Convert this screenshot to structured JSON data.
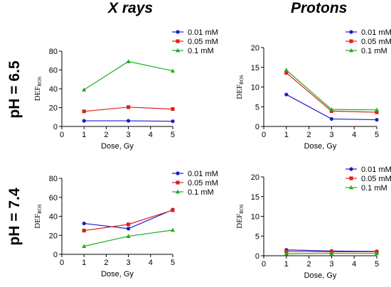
{
  "headers": {
    "col_left": "X rays",
    "col_right": "Protons",
    "row_top": "pH = 6.5",
    "row_bottom": "pH = 7.4"
  },
  "colors": {
    "0.01 mM": "#1a1acc",
    "0.05 mM": "#e0201c",
    "0.1 mM": "#1fae1f"
  },
  "chart_data": [
    {
      "id": "xray-ph65",
      "type": "line",
      "xlabel": "Dose, Gy",
      "ylabel": "DEF",
      "ylabel_sub": "ROS",
      "xlim": [
        0,
        5
      ],
      "xticks": [
        0,
        1,
        2,
        3,
        4,
        5
      ],
      "ylim": [
        0,
        80
      ],
      "yticks": [
        0,
        20,
        40,
        60,
        80
      ],
      "x": [
        1,
        3,
        5
      ],
      "series": [
        {
          "name": "0.01 mM",
          "values": [
            6,
            6,
            5.5
          ]
        },
        {
          "name": "0.05 mM",
          "values": [
            16,
            20.5,
            18.5
          ]
        },
        {
          "name": "0.1 mM",
          "values": [
            39,
            69,
            59
          ]
        }
      ]
    },
    {
      "id": "proton-ph65",
      "type": "line",
      "xlabel": "Dose, Gy",
      "ylabel": "DEF",
      "ylabel_sub": "ROS",
      "xlim": [
        0,
        5
      ],
      "xticks": [
        0,
        1,
        2,
        3,
        4,
        5
      ],
      "ylim": [
        0,
        20
      ],
      "yticks": [
        0,
        5,
        10,
        15,
        20
      ],
      "x": [
        1,
        3,
        5
      ],
      "series": [
        {
          "name": "0.01 mM",
          "values": [
            8.1,
            1.9,
            1.7
          ]
        },
        {
          "name": "0.05 mM",
          "values": [
            13.6,
            3.9,
            3.6
          ]
        },
        {
          "name": "0.1 mM",
          "values": [
            14.3,
            4.3,
            4.2
          ]
        }
      ]
    },
    {
      "id": "xray-ph74",
      "type": "line",
      "xlabel": "Dose, Gy",
      "ylabel": "DEF",
      "ylabel_sub": "ROS",
      "xlim": [
        0,
        5
      ],
      "xticks": [
        0,
        1,
        2,
        3,
        4,
        5
      ],
      "ylim": [
        0,
        80
      ],
      "yticks": [
        0,
        20,
        40,
        60,
        80
      ],
      "x": [
        1,
        3,
        5
      ],
      "series": [
        {
          "name": "0.01 mM",
          "values": [
            32.5,
            27,
            47
          ]
        },
        {
          "name": "0.05 mM",
          "values": [
            25,
            31.5,
            46.5
          ]
        },
        {
          "name": "0.1 mM",
          "values": [
            8.5,
            19,
            25.5
          ]
        }
      ]
    },
    {
      "id": "proton-ph74",
      "type": "line",
      "xlabel": "Dose, Gy",
      "ylabel": "DEF",
      "ylabel_sub": "ROS",
      "xlim": [
        0,
        5
      ],
      "xticks": [
        0,
        1,
        2,
        3,
        4,
        5
      ],
      "ylim": [
        0,
        20
      ],
      "yticks": [
        0,
        5,
        10,
        15,
        20
      ],
      "x": [
        1,
        3,
        5
      ],
      "series": [
        {
          "name": "0.01 mM",
          "values": [
            1.5,
            1.2,
            1.1
          ]
        },
        {
          "name": "0.05 mM",
          "values": [
            1.1,
            1.0,
            1.0
          ]
        },
        {
          "name": "0.1 mM",
          "values": [
            0.5,
            0.6,
            0.6
          ]
        }
      ]
    }
  ]
}
